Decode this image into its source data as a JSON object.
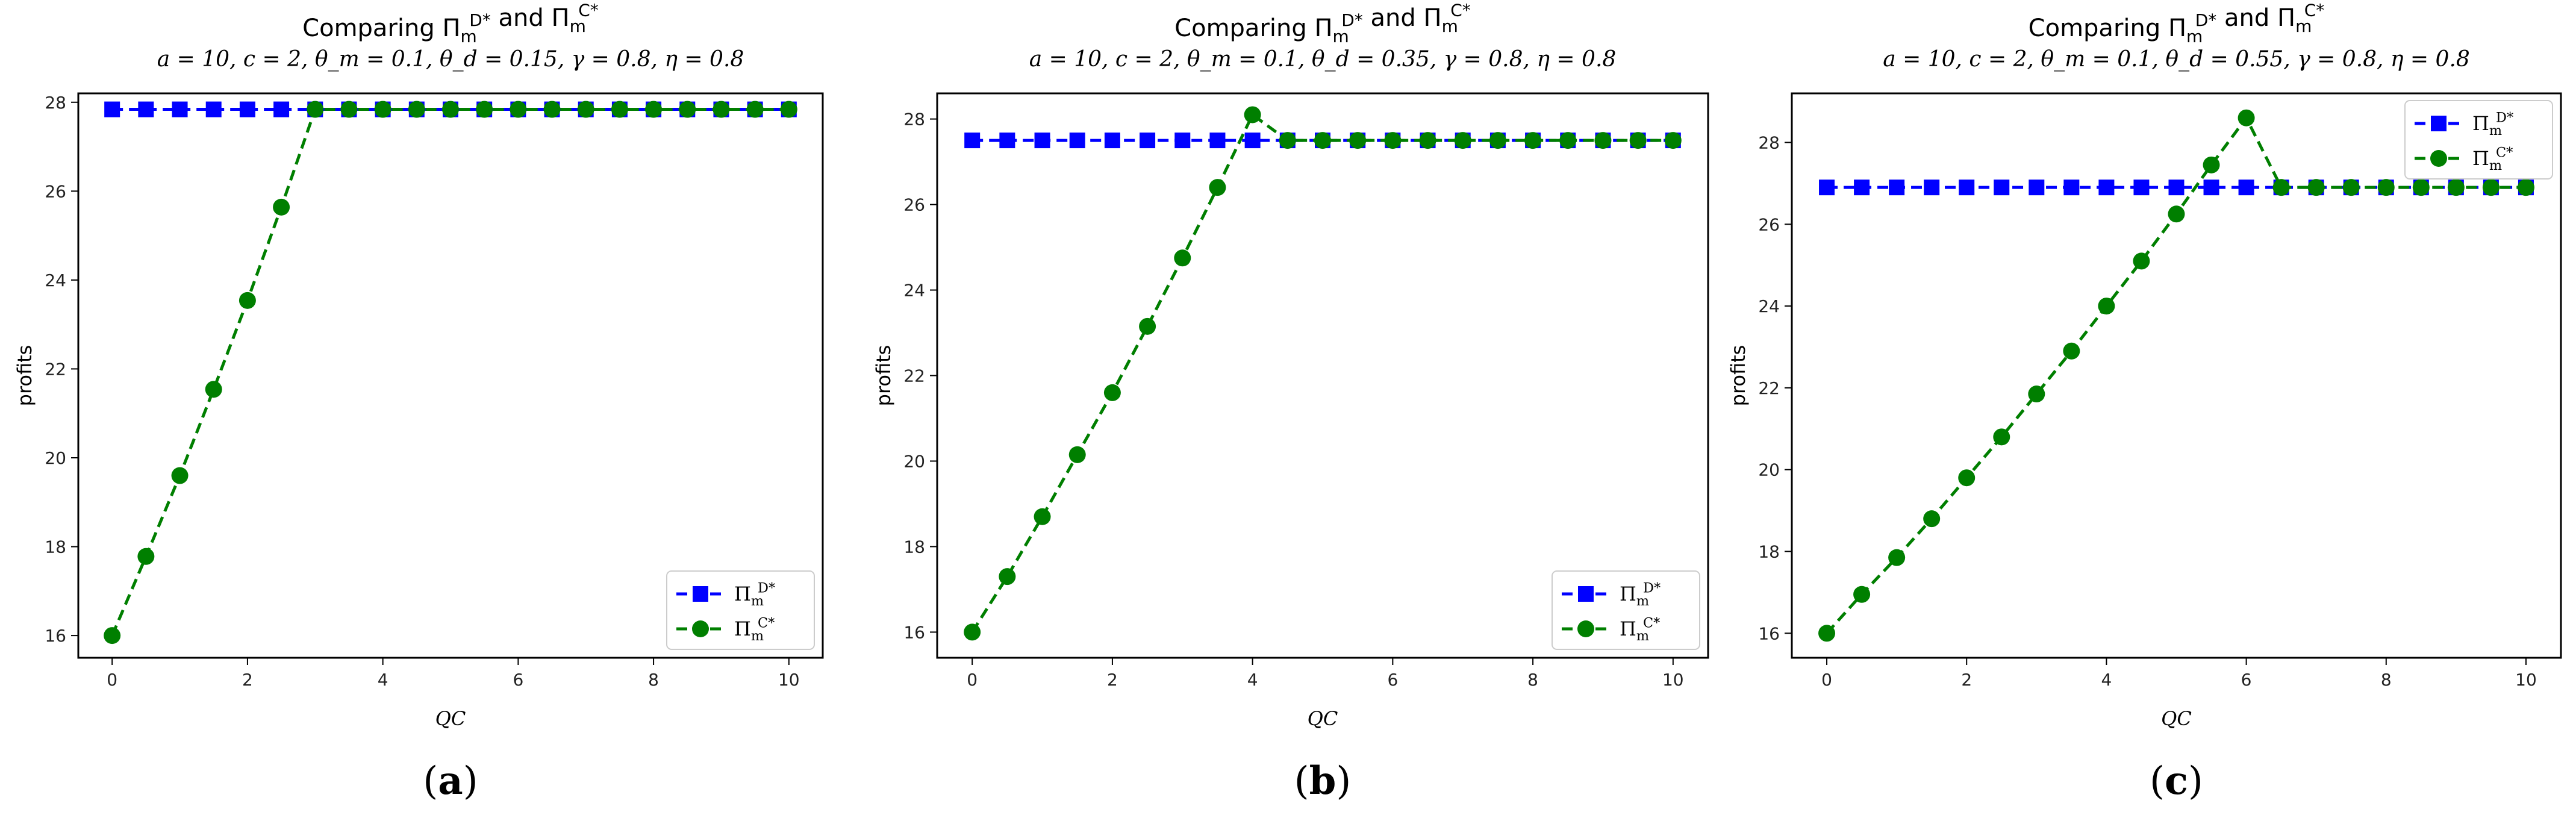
{
  "chart_data": [
    {
      "type": "line",
      "title": "Comparing Π_m^{D*} and Π_m^{C*}",
      "subtitle": "a = 10, c = 2, θ_m = 0.1, θ_d = 0.15, γ = 0.8, η = 0.8",
      "xlabel": "Q^C",
      "ylabel": "profits",
      "caption": "(a)",
      "xlim": [
        -0.5,
        10.5
      ],
      "ylim": [
        15.5,
        28.2
      ],
      "xticks": [
        0,
        2,
        4,
        6,
        8,
        10
      ],
      "yticks": [
        16,
        18,
        20,
        22,
        24,
        26,
        28
      ],
      "legend_loc": "lower-right",
      "x": [
        0,
        0.5,
        1,
        1.5,
        2,
        2.5,
        3,
        3.5,
        4,
        4.5,
        5,
        5.5,
        6,
        6.5,
        7,
        7.5,
        8,
        8.5,
        9,
        9.5,
        10
      ],
      "series": [
        {
          "name": "Π_m^{D*}",
          "color": "#0000ff",
          "marker": "square",
          "values": [
            27.84,
            27.84,
            27.84,
            27.84,
            27.84,
            27.84,
            27.84,
            27.84,
            27.84,
            27.84,
            27.84,
            27.84,
            27.84,
            27.84,
            27.84,
            27.84,
            27.84,
            27.84,
            27.84,
            27.84,
            27.84
          ]
        },
        {
          "name": "Π_m^{C*}",
          "color": "#007f00",
          "marker": "circle",
          "values": [
            16.0,
            17.78,
            19.6,
            21.54,
            23.54,
            25.64,
            27.84,
            27.84,
            27.84,
            27.84,
            27.84,
            27.84,
            27.84,
            27.84,
            27.84,
            27.84,
            27.84,
            27.84,
            27.84,
            27.84,
            27.84
          ]
        }
      ]
    },
    {
      "type": "line",
      "title": "Comparing Π_m^{D*} and Π_m^{C*}",
      "subtitle": "a = 10, c = 2, θ_m = 0.1, θ_d = 0.35, γ = 0.8, η = 0.8",
      "xlabel": "Q^C",
      "ylabel": "profits",
      "caption": "(b)",
      "xlim": [
        -0.5,
        10.5
      ],
      "ylim": [
        15.4,
        28.6
      ],
      "xticks": [
        0,
        2,
        4,
        6,
        8,
        10
      ],
      "yticks": [
        16,
        18,
        20,
        22,
        24,
        26,
        28
      ],
      "legend_loc": "lower-right",
      "x": [
        0,
        0.5,
        1,
        1.5,
        2,
        2.5,
        3,
        3.5,
        4,
        4.5,
        5,
        5.5,
        6,
        6.5,
        7,
        7.5,
        8,
        8.5,
        9,
        9.5,
        10
      ],
      "series": [
        {
          "name": "Π_m^{D*}",
          "color": "#0000ff",
          "marker": "square",
          "values": [
            27.5,
            27.5,
            27.5,
            27.5,
            27.5,
            27.5,
            27.5,
            27.5,
            27.5,
            27.5,
            27.5,
            27.5,
            27.5,
            27.5,
            27.5,
            27.5,
            27.5,
            27.5,
            27.5,
            27.5,
            27.5
          ]
        },
        {
          "name": "Π_m^{C*}",
          "color": "#007f00",
          "marker": "circle",
          "values": [
            16.0,
            17.3,
            18.7,
            20.15,
            21.6,
            23.15,
            24.75,
            26.4,
            28.1,
            27.5,
            27.5,
            27.5,
            27.5,
            27.5,
            27.5,
            27.5,
            27.5,
            27.5,
            27.5,
            27.5,
            27.5
          ]
        }
      ]
    },
    {
      "type": "line",
      "title": "Comparing Π_m^{D*} and Π_m^{C*}",
      "subtitle": "a = 10, c = 2, θ_m = 0.1, θ_d = 0.55, γ = 0.8, η = 0.8",
      "xlabel": "Q^C",
      "ylabel": "profits",
      "caption": "(c)",
      "xlim": [
        -0.5,
        10.5
      ],
      "ylim": [
        15.4,
        29.2
      ],
      "xticks": [
        0,
        2,
        4,
        6,
        8,
        10
      ],
      "yticks": [
        16,
        18,
        20,
        22,
        24,
        26,
        28
      ],
      "legend_loc": "upper-right",
      "x": [
        0,
        0.5,
        1,
        1.5,
        2,
        2.5,
        3,
        3.5,
        4,
        4.5,
        5,
        5.5,
        6,
        6.5,
        7,
        7.5,
        8,
        8.5,
        9,
        9.5,
        10
      ],
      "series": [
        {
          "name": "Π_m^{D*}",
          "color": "#0000ff",
          "marker": "square",
          "values": [
            26.9,
            26.9,
            26.9,
            26.9,
            26.9,
            26.9,
            26.9,
            26.9,
            26.9,
            26.9,
            26.9,
            26.9,
            26.9,
            26.9,
            26.9,
            26.9,
            26.9,
            26.9,
            26.9,
            26.9,
            26.9
          ]
        },
        {
          "name": "Π_m^{C*}",
          "color": "#007f00",
          "marker": "circle",
          "values": [
            16.0,
            16.95,
            17.85,
            18.8,
            19.8,
            20.8,
            21.85,
            22.9,
            24.0,
            25.1,
            26.25,
            27.45,
            28.6,
            26.9,
            26.9,
            26.9,
            26.9,
            26.9,
            26.9,
            26.9,
            26.9
          ]
        }
      ]
    }
  ]
}
